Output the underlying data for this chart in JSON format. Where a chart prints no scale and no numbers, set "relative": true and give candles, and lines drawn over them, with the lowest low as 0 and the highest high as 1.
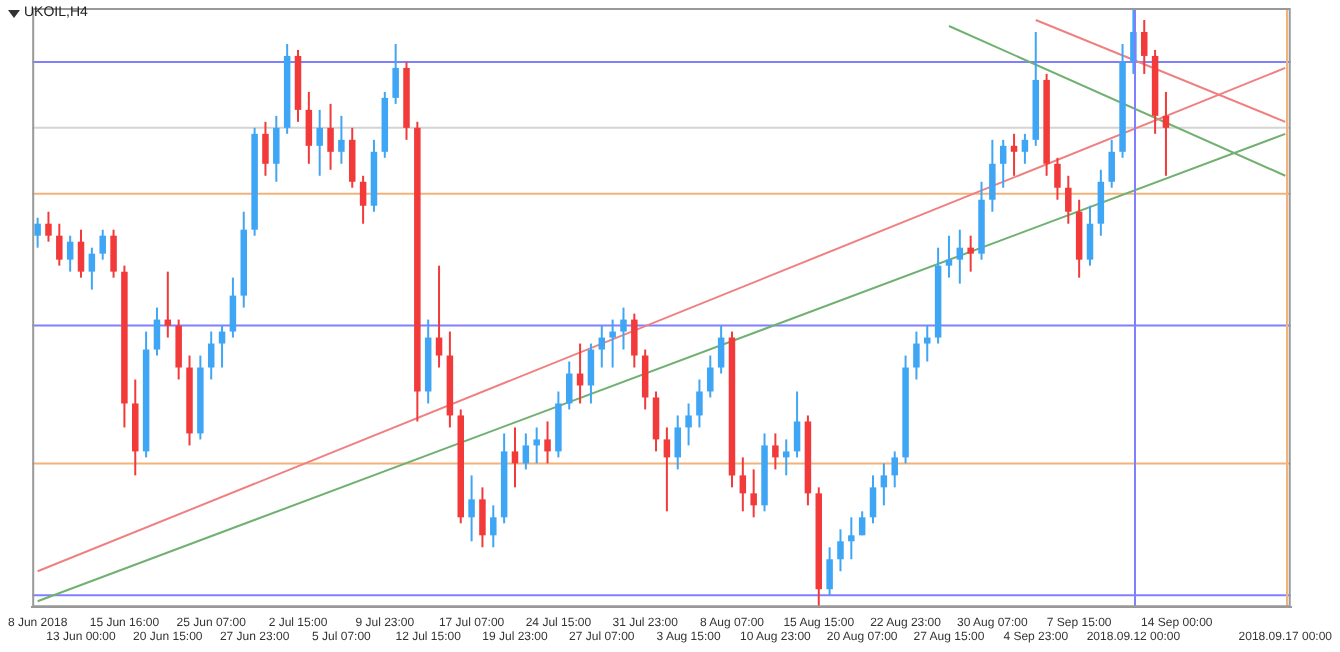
{
  "chart_data": {
    "type": "candlestick",
    "title": "UKOIL,H4",
    "relative": true,
    "categories": [
      "8 Jun 2018",
      null,
      null,
      null,
      "13 Jun 00:00",
      null,
      null,
      null,
      "15 Jun 16:00",
      null,
      null,
      null,
      "20 Jun 15:00",
      null,
      null,
      null,
      "25 Jun 07:00",
      null,
      null,
      null,
      "27 Jun 23:00",
      null,
      null,
      null,
      "2 Jul 15:00",
      null,
      null,
      null,
      "5 Jul 07:00",
      null,
      null,
      null,
      "9 Jul 23:00",
      null,
      null,
      null,
      "12 Jul 15:00",
      null,
      null,
      null,
      "17 Jul 07:00",
      null,
      null,
      null,
      "19 Jul 23:00",
      null,
      null,
      null,
      "24 Jul 15:00",
      null,
      null,
      null,
      "27 Jul 07:00",
      null,
      null,
      null,
      "31 Jul 23:00",
      null,
      null,
      null,
      "3 Aug 15:00",
      null,
      null,
      null,
      "8 Aug 07:00",
      null,
      null,
      null,
      "10 Aug 23:00",
      null,
      null,
      null,
      "15 Aug 15:00",
      null,
      null,
      null,
      "20 Aug 07:00",
      null,
      null,
      null,
      "22 Aug 23:00",
      null,
      null,
      null,
      "27 Aug 15:00",
      null,
      null,
      null,
      "30 Aug 07:00",
      null,
      null,
      null,
      "4 Sep 23:00",
      null,
      null,
      null,
      "7 Sep 15:00",
      null,
      null,
      null,
      null,
      "2018.09.12 00:00",
      null,
      null,
      null,
      "14 Sep 00:00",
      null,
      null,
      null,
      null,
      null,
      null,
      null,
      null,
      null,
      "2018.09.17 00:00"
    ],
    "ohlc": [
      [
        0.62,
        0.65,
        0.6,
        0.64
      ],
      [
        0.64,
        0.66,
        0.61,
        0.62
      ],
      [
        0.62,
        0.64,
        0.57,
        0.58
      ],
      [
        0.58,
        0.62,
        0.56,
        0.61
      ],
      [
        0.61,
        0.63,
        0.55,
        0.56
      ],
      [
        0.56,
        0.6,
        0.53,
        0.59
      ],
      [
        0.59,
        0.63,
        0.58,
        0.62
      ],
      [
        0.62,
        0.63,
        0.55,
        0.56
      ],
      [
        0.56,
        0.57,
        0.3,
        0.34
      ],
      [
        0.34,
        0.38,
        0.22,
        0.26
      ],
      [
        0.26,
        0.46,
        0.25,
        0.43
      ],
      [
        0.43,
        0.5,
        0.42,
        0.48
      ],
      [
        0.48,
        0.56,
        0.45,
        0.47
      ],
      [
        0.47,
        0.48,
        0.38,
        0.4
      ],
      [
        0.4,
        0.42,
        0.27,
        0.29
      ],
      [
        0.29,
        0.42,
        0.28,
        0.4
      ],
      [
        0.4,
        0.46,
        0.38,
        0.44
      ],
      [
        0.44,
        0.47,
        0.4,
        0.46
      ],
      [
        0.46,
        0.55,
        0.45,
        0.52
      ],
      [
        0.52,
        0.66,
        0.5,
        0.63
      ],
      [
        0.63,
        0.8,
        0.62,
        0.79
      ],
      [
        0.79,
        0.81,
        0.72,
        0.74
      ],
      [
        0.74,
        0.82,
        0.71,
        0.8
      ],
      [
        0.8,
        0.94,
        0.79,
        0.92
      ],
      [
        0.92,
        0.93,
        0.81,
        0.83
      ],
      [
        0.83,
        0.86,
        0.74,
        0.77
      ],
      [
        0.77,
        0.83,
        0.72,
        0.8
      ],
      [
        0.8,
        0.84,
        0.73,
        0.76
      ],
      [
        0.76,
        0.82,
        0.74,
        0.78
      ],
      [
        0.78,
        0.8,
        0.7,
        0.71
      ],
      [
        0.71,
        0.72,
        0.64,
        0.67
      ],
      [
        0.67,
        0.78,
        0.66,
        0.76
      ],
      [
        0.76,
        0.86,
        0.75,
        0.85
      ],
      [
        0.85,
        0.94,
        0.84,
        0.9
      ],
      [
        0.9,
        0.91,
        0.78,
        0.8
      ],
      [
        0.8,
        0.81,
        0.31,
        0.36
      ],
      [
        0.36,
        0.48,
        0.34,
        0.45
      ],
      [
        0.45,
        0.57,
        0.4,
        0.42
      ],
      [
        0.42,
        0.46,
        0.3,
        0.32
      ],
      [
        0.32,
        0.33,
        0.14,
        0.15
      ],
      [
        0.15,
        0.22,
        0.11,
        0.18
      ],
      [
        0.18,
        0.2,
        0.1,
        0.12
      ],
      [
        0.12,
        0.17,
        0.1,
        0.15
      ],
      [
        0.15,
        0.29,
        0.14,
        0.26
      ],
      [
        0.26,
        0.3,
        0.2,
        0.24
      ],
      [
        0.24,
        0.29,
        0.23,
        0.27
      ],
      [
        0.27,
        0.3,
        0.24,
        0.28
      ],
      [
        0.28,
        0.31,
        0.24,
        0.26
      ],
      [
        0.26,
        0.36,
        0.25,
        0.34
      ],
      [
        0.34,
        0.41,
        0.33,
        0.39
      ],
      [
        0.39,
        0.44,
        0.34,
        0.37
      ],
      [
        0.37,
        0.44,
        0.34,
        0.43
      ],
      [
        0.43,
        0.47,
        0.4,
        0.45
      ],
      [
        0.45,
        0.48,
        0.4,
        0.46
      ],
      [
        0.46,
        0.5,
        0.43,
        0.48
      ],
      [
        0.48,
        0.49,
        0.4,
        0.42
      ],
      [
        0.42,
        0.43,
        0.33,
        0.35
      ],
      [
        0.35,
        0.36,
        0.26,
        0.28
      ],
      [
        0.28,
        0.3,
        0.16,
        0.25
      ],
      [
        0.25,
        0.32,
        0.23,
        0.3
      ],
      [
        0.3,
        0.34,
        0.27,
        0.32
      ],
      [
        0.32,
        0.38,
        0.3,
        0.36
      ],
      [
        0.36,
        0.42,
        0.35,
        0.4
      ],
      [
        0.4,
        0.47,
        0.39,
        0.45
      ],
      [
        0.45,
        0.46,
        0.2,
        0.22
      ],
      [
        0.22,
        0.25,
        0.16,
        0.19
      ],
      [
        0.19,
        0.23,
        0.15,
        0.17
      ],
      [
        0.17,
        0.29,
        0.16,
        0.27
      ],
      [
        0.27,
        0.29,
        0.23,
        0.25
      ],
      [
        0.25,
        0.28,
        0.22,
        0.26
      ],
      [
        0.26,
        0.36,
        0.25,
        0.31
      ],
      [
        0.31,
        0.32,
        0.17,
        0.19
      ],
      [
        0.19,
        0.2,
        0.0,
        0.03
      ],
      [
        0.03,
        0.1,
        0.02,
        0.08
      ],
      [
        0.08,
        0.13,
        0.06,
        0.11
      ],
      [
        0.11,
        0.15,
        0.08,
        0.12
      ],
      [
        0.12,
        0.16,
        0.12,
        0.15
      ],
      [
        0.15,
        0.22,
        0.14,
        0.2
      ],
      [
        0.2,
        0.24,
        0.17,
        0.22
      ],
      [
        0.22,
        0.26,
        0.2,
        0.25
      ],
      [
        0.25,
        0.42,
        0.24,
        0.4
      ],
      [
        0.4,
        0.46,
        0.38,
        0.44
      ],
      [
        0.44,
        0.47,
        0.41,
        0.45
      ],
      [
        0.45,
        0.6,
        0.44,
        0.57
      ],
      [
        0.57,
        0.62,
        0.55,
        0.58
      ],
      [
        0.58,
        0.63,
        0.54,
        0.6
      ],
      [
        0.6,
        0.62,
        0.56,
        0.59
      ],
      [
        0.59,
        0.71,
        0.58,
        0.68
      ],
      [
        0.68,
        0.78,
        0.66,
        0.74
      ],
      [
        0.74,
        0.78,
        0.7,
        0.77
      ],
      [
        0.77,
        0.79,
        0.72,
        0.76
      ],
      [
        0.76,
        0.79,
        0.74,
        0.78
      ],
      [
        0.78,
        0.96,
        0.77,
        0.88
      ],
      [
        0.88,
        0.89,
        0.72,
        0.74
      ],
      [
        0.74,
        0.75,
        0.68,
        0.7
      ],
      [
        0.7,
        0.72,
        0.64,
        0.66
      ],
      [
        0.66,
        0.68,
        0.55,
        0.58
      ],
      [
        0.58,
        0.67,
        0.57,
        0.64
      ],
      [
        0.64,
        0.73,
        0.62,
        0.71
      ],
      [
        0.71,
        0.78,
        0.7,
        0.76
      ],
      [
        0.76,
        0.94,
        0.75,
        0.91
      ],
      [
        0.91,
        1.0,
        0.89,
        0.96
      ],
      [
        0.96,
        0.98,
        0.89,
        0.92
      ],
      [
        0.92,
        0.93,
        0.79,
        0.82
      ],
      [
        0.82,
        0.86,
        0.72,
        0.8
      ],
      null,
      null,
      null,
      null,
      null,
      null,
      null,
      null,
      null,
      null,
      null
    ],
    "colors": [
      "#3fa6f5",
      "#f23a3a",
      "#f23a3a",
      "#3fa6f5",
      "#f23a3a",
      "#3fa6f5",
      "#3fa6f5",
      "#f23a3a",
      "#f23a3a",
      "#f23a3a",
      "#3fa6f5",
      "#3fa6f5",
      "#f23a3a",
      "#f23a3a",
      "#f23a3a",
      "#3fa6f5",
      "#3fa6f5",
      "#3fa6f5",
      "#3fa6f5",
      "#3fa6f5",
      "#3fa6f5",
      "#f23a3a",
      "#3fa6f5",
      "#3fa6f5",
      "#f23a3a",
      "#f23a3a",
      "#3fa6f5",
      "#f23a3a",
      "#3fa6f5",
      "#f23a3a",
      "#f23a3a",
      "#3fa6f5",
      "#3fa6f5",
      "#3fa6f5",
      "#f23a3a",
      "#f23a3a",
      "#3fa6f5",
      "#f23a3a",
      "#f23a3a",
      "#f23a3a",
      "#3fa6f5",
      "#f23a3a",
      "#3fa6f5",
      "#3fa6f5",
      "#f23a3a",
      "#3fa6f5",
      "#3fa6f5",
      "#f23a3a",
      "#3fa6f5",
      "#3fa6f5",
      "#f23a3a",
      "#3fa6f5",
      "#3fa6f5",
      "#3fa6f5",
      "#3fa6f5",
      "#f23a3a",
      "#f23a3a",
      "#f23a3a",
      "#f23a3a",
      "#3fa6f5",
      "#3fa6f5",
      "#3fa6f5",
      "#3fa6f5",
      "#3fa6f5",
      "#f23a3a",
      "#f23a3a",
      "#f23a3a",
      "#3fa6f5",
      "#f23a3a",
      "#3fa6f5",
      "#3fa6f5",
      "#f23a3a",
      "#f23a3a",
      "#3fa6f5",
      "#3fa6f5",
      "#3fa6f5",
      "#3fa6f5",
      "#3fa6f5",
      "#3fa6f5",
      "#3fa6f5",
      "#3fa6f5",
      "#3fa6f5",
      "#3fa6f5",
      "#3fa6f5",
      "#3fa6f5",
      "#3fa6f5",
      "#f23a3a",
      "#3fa6f5",
      "#3fa6f5",
      "#3fa6f5",
      "#f23a3a",
      "#3fa6f5",
      "#3fa6f5",
      "#f23a3a",
      "#f23a3a",
      "#f23a3a",
      "#f23a3a",
      "#3fa6f5",
      "#3fa6f5",
      "#3fa6f5",
      "#3fa6f5",
      "#3fa6f5",
      "#f23a3a",
      "#f23a3a",
      "#f23a3a",
      null,
      null,
      null,
      null,
      null,
      null,
      null,
      null,
      null,
      null,
      null
    ],
    "series": [
      {
        "type": "line",
        "color": "#f08080",
        "x": [
          "8 Jun 2018",
          "2018.09.17 00:00"
        ],
        "values": [
          0.06,
          0.9
        ]
      },
      {
        "type": "line",
        "color": "#70b070",
        "x": [
          "8 Jun 2018",
          "2018.09.17 00:00"
        ],
        "values": [
          0.01,
          0.79
        ]
      },
      {
        "type": "line",
        "color": "#f08080",
        "x": [
          "4 Sep 23:00",
          "2018.09.17 00:00"
        ],
        "values": [
          0.98,
          0.81
        ]
      },
      {
        "type": "line",
        "color": "#70b070",
        "x": [
          "27 Aug 15:00",
          "2018.09.17 00:00"
        ],
        "values": [
          0.97,
          0.72
        ]
      }
    ],
    "ref_lines": [
      {
        "axis": "y",
        "value": 0.91,
        "color": "#8080ff"
      },
      {
        "axis": "y",
        "value": 0.8,
        "color": "#d4d4d4"
      },
      {
        "axis": "y",
        "value": 0.69,
        "color": "#f2b27a"
      },
      {
        "axis": "y",
        "value": 0.47,
        "color": "#8080ff"
      },
      {
        "axis": "y",
        "value": 0.24,
        "color": "#f2b27a"
      },
      {
        "axis": "y",
        "value": 0.02,
        "color": "#8080ff"
      },
      {
        "axis": "x",
        "value": "2018.09.12 00:00",
        "color": "#8080ff"
      },
      {
        "axis": "x",
        "value": "2018.09.17 00:00",
        "color": "#f2b27a"
      }
    ]
  }
}
